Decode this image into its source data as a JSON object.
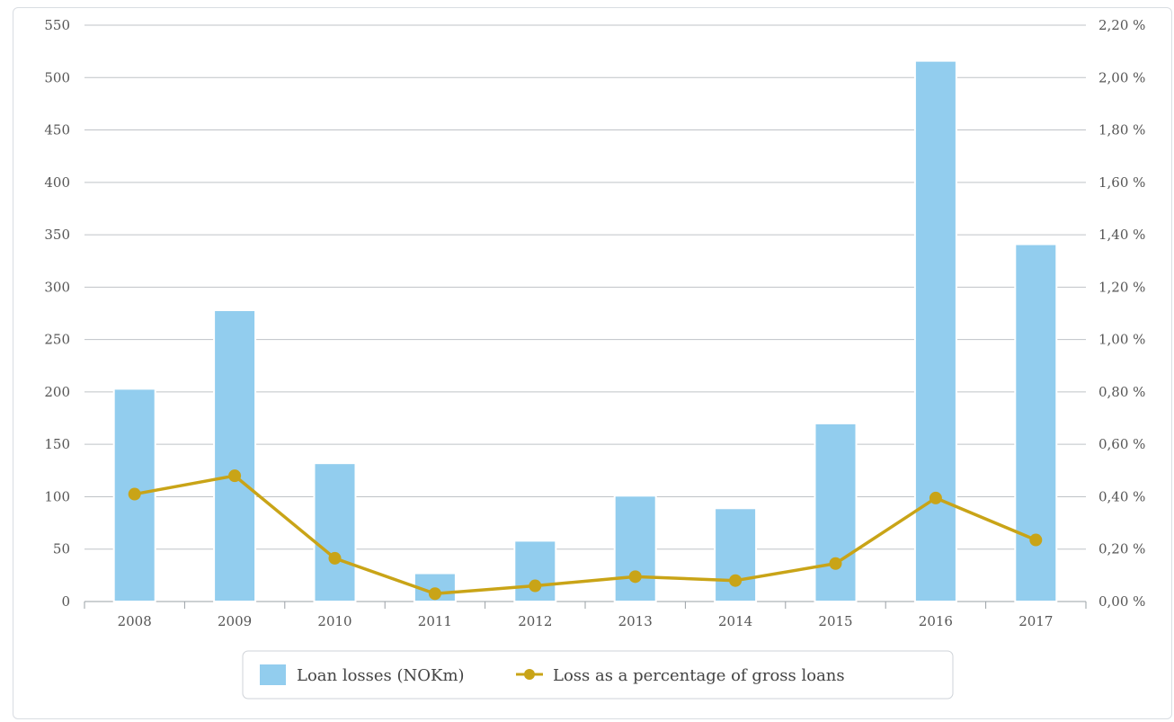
{
  "chart_data": {
    "type": "bar",
    "categories": [
      "2008",
      "2009",
      "2010",
      "2011",
      "2012",
      "2013",
      "2014",
      "2015",
      "2016",
      "2017"
    ],
    "series": [
      {
        "name": "Loan losses (NOKm)",
        "type": "bar",
        "axis": "left",
        "color": "#92cdee",
        "values": [
          203,
          278,
          132,
          27,
          58,
          101,
          89,
          170,
          516,
          341
        ]
      },
      {
        "name": "Loss as a percentage of gross loans",
        "type": "line",
        "axis": "right",
        "color": "#c9a417",
        "values": [
          0.41,
          0.48,
          0.165,
          0.03,
          0.06,
          0.095,
          0.08,
          0.145,
          0.395,
          0.235
        ]
      }
    ],
    "y_left": {
      "range": [
        0,
        550
      ],
      "ticks": [
        "0",
        "50",
        "100",
        "150",
        "200",
        "250",
        "300",
        "350",
        "400",
        "450",
        "500",
        "550"
      ]
    },
    "y_right": {
      "range": [
        0,
        2.2
      ],
      "ticks": [
        "0,00 %",
        "0,20 %",
        "0,40 %",
        "0,60 %",
        "0,80 %",
        "1,00 %",
        "1,20 %",
        "1,40 %",
        "1,60 %",
        "1,80 %",
        "2,00 %",
        "2,20 %"
      ]
    },
    "grid": true,
    "legend_position": "bottom-center"
  }
}
